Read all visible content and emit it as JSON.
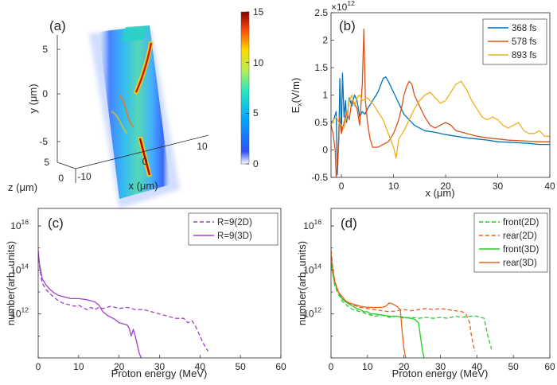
{
  "colors": {
    "blue": "#0072BD",
    "red": "#D95319",
    "gold": "#EDB120",
    "purple": "#A040C8",
    "green": "#22CC22",
    "orange": "#E8621E"
  },
  "panel_a": {
    "label": "(a)",
    "xlabel": "x (μm)",
    "ylabel": "y (μm)",
    "zlabel": "z (μm)",
    "xticks": [
      "-10",
      "0",
      "10"
    ],
    "yticks": [
      "5",
      "0",
      "-5"
    ],
    "zticks": [
      "5",
      "0"
    ],
    "colorbar_ticks": [
      "15",
      "10",
      "5",
      "0"
    ]
  },
  "chart_data": [
    {
      "panel": "(b)",
      "type": "line",
      "xlabel": "x (μm)",
      "ylabel": "E_x(V/m)",
      "ylabel_main": "E",
      "ylabel_sub": "x",
      "ylabel_tail": "(V/m)",
      "y_multiplier": "×10",
      "y_multiplier_exp": "12",
      "xlim": [
        -2,
        40
      ],
      "ylim": [
        -0.5,
        2.5
      ],
      "xticks": [
        "0",
        "10",
        "20",
        "30",
        "40"
      ],
      "yticks": [
        "-0.5",
        "0",
        "0.5",
        "1",
        "1.5",
        "2",
        "2.5"
      ],
      "legend_position": "top-right",
      "series": [
        {
          "name": "368 fs",
          "color": "#0072BD",
          "x": [
            -2,
            -1.5,
            -1,
            -0.8,
            -0.5,
            -0.3,
            0,
            0.2,
            0.5,
            0.8,
            1.0,
            1.5,
            2,
            2.5,
            3,
            3.5,
            4,
            4.5,
            5,
            6,
            7,
            8,
            8.5,
            9,
            10,
            11,
            12,
            13,
            14,
            15,
            16,
            18,
            20,
            22,
            24,
            26,
            28,
            30,
            32,
            34,
            36,
            38,
            40
          ],
          "y": [
            0.5,
            0.55,
            0.7,
            -0.45,
            0.2,
            1.3,
            0.3,
            1.4,
            0.6,
            0.9,
            0.5,
            0.95,
            0.8,
            1.0,
            0.9,
            0.6,
            0.7,
            0.65,
            0.75,
            0.9,
            1.05,
            1.3,
            1.33,
            1.25,
            1.05,
            0.85,
            0.65,
            0.55,
            0.45,
            0.4,
            0.35,
            0.32,
            0.28,
            0.25,
            0.22,
            0.2,
            0.18,
            0.15,
            0.14,
            0.13,
            0.12,
            0.1,
            0.1
          ]
        },
        {
          "name": "578 fs",
          "color": "#D95319",
          "x": [
            -2,
            -1.6,
            -1.2,
            -1,
            -0.7,
            -0.4,
            0,
            0.5,
            1,
            1.5,
            2,
            2.5,
            3,
            3.5,
            4,
            4.3,
            4.6,
            5,
            5.5,
            6,
            7,
            8,
            9,
            10,
            11,
            11.5,
            12,
            12.5,
            13,
            13.5,
            14,
            15,
            16,
            17,
            18,
            19,
            20,
            21,
            22,
            24,
            26,
            28,
            30,
            32,
            34,
            36,
            38,
            40
          ],
          "y": [
            0.45,
            0.3,
            0.0,
            -0.5,
            -0.2,
            0.6,
            0.3,
            0.5,
            0.7,
            0.55,
            0.9,
            0.85,
            0.75,
            0.45,
            1.2,
            2.2,
            0.9,
            0.5,
            0.2,
            0.05,
            0.05,
            0.1,
            0.15,
            0.3,
            0.55,
            0.75,
            1.0,
            1.15,
            1.25,
            1.2,
            1.0,
            0.8,
            0.6,
            0.45,
            0.4,
            0.45,
            0.5,
            0.45,
            0.35,
            0.3,
            0.25,
            0.22,
            0.2,
            0.18,
            0.17,
            0.16,
            0.15,
            0.15
          ]
        },
        {
          "name": "893 fs",
          "color": "#EDB120",
          "x": [
            -2,
            -1.5,
            -1,
            -0.5,
            0,
            0.5,
            1,
            1.5,
            2,
            2.5,
            3,
            3.5,
            4,
            5,
            6,
            7,
            8,
            9,
            10,
            10.5,
            11,
            12,
            13,
            14,
            15,
            16,
            17,
            18,
            19,
            20,
            21,
            22,
            23,
            24,
            25,
            26,
            27,
            28,
            29,
            30,
            31,
            32,
            33,
            34,
            35,
            36,
            37,
            38,
            39,
            40
          ],
          "y": [
            0.45,
            0.55,
            0.6,
            0.5,
            0.45,
            0.4,
            0.6,
            0.9,
            1.0,
            0.8,
            0.95,
            1.0,
            0.9,
            0.95,
            0.85,
            0.7,
            0.55,
            0.3,
            0.05,
            -0.15,
            0.2,
            0.35,
            0.55,
            0.75,
            0.9,
            1.0,
            1.05,
            0.95,
            0.85,
            0.9,
            1.05,
            1.2,
            1.25,
            1.1,
            0.9,
            0.75,
            0.6,
            0.55,
            0.6,
            0.55,
            0.45,
            0.4,
            0.45,
            0.5,
            0.35,
            0.3,
            0.3,
            0.35,
            0.25,
            0.25
          ]
        }
      ]
    },
    {
      "panel": "(c)",
      "type": "line",
      "xlabel": "Proton energy (MeV)",
      "ylabel": "number(arb. units)",
      "xlim": [
        0,
        60
      ],
      "ylog": true,
      "ylim_exp": [
        10,
        16.8
      ],
      "xticks": [
        "0",
        "10",
        "20",
        "30",
        "40",
        "50",
        "60"
      ],
      "yticks": [
        {
          "base": "10",
          "exp": "12",
          "e": 12
        },
        {
          "base": "10",
          "exp": "14",
          "e": 14
        },
        {
          "base": "10",
          "exp": "16",
          "e": 16
        }
      ],
      "legend_position": "top-right",
      "series": [
        {
          "name": "R=9(2D)",
          "color": "#A040C8",
          "dashed": true,
          "x": [
            0,
            0.3,
            0.7,
            1,
            2,
            3,
            4,
            5,
            6,
            7,
            8,
            9,
            10,
            11,
            12,
            13,
            14,
            15,
            16,
            18,
            20,
            22,
            24,
            26,
            28,
            30,
            32,
            34,
            36,
            37,
            38,
            39,
            40,
            41,
            42
          ],
          "y": [
            14.8,
            14.2,
            13.7,
            13.4,
            13.1,
            12.9,
            12.75,
            12.6,
            12.5,
            12.45,
            12.4,
            12.35,
            12.4,
            12.3,
            12.2,
            12.3,
            12.2,
            12.3,
            12.25,
            12.35,
            12.25,
            12.3,
            12.2,
            12.2,
            12.1,
            12.0,
            11.9,
            11.8,
            11.8,
            11.6,
            11.7,
            11.4,
            11.0,
            10.6,
            10.3
          ]
        },
        {
          "name": "R=9(3D)",
          "color": "#A040C8",
          "dashed": false,
          "x": [
            0,
            0.3,
            0.7,
            1,
            2,
            3,
            4,
            5,
            6,
            7,
            8,
            10,
            12,
            14,
            15,
            16,
            17,
            18,
            19,
            20,
            21,
            22,
            22.5,
            23,
            23.5,
            24,
            24.5,
            25,
            25.5
          ],
          "y": [
            14.9,
            14.3,
            13.9,
            13.6,
            13.3,
            13.1,
            12.95,
            12.85,
            12.8,
            12.75,
            12.7,
            12.7,
            12.65,
            12.55,
            12.4,
            12.1,
            11.95,
            11.85,
            11.75,
            11.6,
            11.55,
            11.5,
            11.35,
            11.0,
            11.3,
            11.0,
            10.6,
            10.2,
            10.0
          ]
        }
      ]
    },
    {
      "panel": "(d)",
      "type": "line",
      "xlabel": "Proton energy (MeV)",
      "ylabel": "number(arb. units)",
      "xlim": [
        0,
        60
      ],
      "ylog": true,
      "ylim_exp": [
        10,
        16.8
      ],
      "xticks": [
        "0",
        "10",
        "20",
        "30",
        "40",
        "50",
        "60"
      ],
      "yticks": [
        {
          "base": "10",
          "exp": "12",
          "e": 12
        },
        {
          "base": "10",
          "exp": "14",
          "e": 14
        },
        {
          "base": "10",
          "exp": "16",
          "e": 16
        }
      ],
      "legend_position": "top-right",
      "series": [
        {
          "name": "front(2D)",
          "color": "#22CC22",
          "dashed": true,
          "x": [
            0,
            0.5,
            1,
            2,
            3,
            4,
            5,
            6,
            8,
            10,
            12,
            14,
            16,
            18,
            20,
            22,
            24,
            26,
            28,
            30,
            32,
            34,
            36,
            38,
            40,
            42,
            43,
            44
          ],
          "y": [
            14.6,
            13.9,
            13.3,
            12.9,
            12.6,
            12.45,
            12.3,
            12.2,
            12.1,
            12.0,
            11.9,
            11.95,
            11.85,
            11.9,
            11.8,
            11.85,
            11.8,
            11.85,
            11.8,
            11.85,
            11.8,
            11.9,
            11.85,
            11.9,
            11.9,
            11.8,
            11.0,
            10.4
          ]
        },
        {
          "name": "rear(2D)",
          "color": "#E8621E",
          "dashed": true,
          "x": [
            0,
            0.5,
            1,
            2,
            3,
            4,
            5,
            6,
            8,
            10,
            12,
            14,
            16,
            18,
            20,
            22,
            24,
            26,
            28,
            30,
            32,
            34,
            36,
            37,
            38,
            38.5,
            39,
            39.5
          ],
          "y": [
            14.9,
            14.1,
            13.5,
            13.0,
            12.75,
            12.55,
            12.45,
            12.4,
            12.3,
            12.25,
            12.2,
            12.15,
            12.1,
            12.15,
            12.2,
            12.15,
            12.2,
            12.25,
            12.2,
            12.25,
            12.2,
            12.15,
            12.1,
            12.0,
            11.6,
            11.0,
            10.6,
            10.3
          ]
        },
        {
          "name": "front(3D)",
          "color": "#22CC22",
          "dashed": false,
          "x": [
            0,
            0.5,
            1,
            2,
            3,
            4,
            5,
            6,
            7,
            8,
            9,
            10,
            11,
            12,
            14,
            16,
            18,
            20,
            22,
            23,
            24,
            24.5,
            25,
            25.5
          ],
          "y": [
            14.3,
            13.8,
            13.4,
            13.0,
            12.7,
            12.55,
            12.45,
            12.35,
            12.25,
            12.2,
            12.1,
            12.1,
            12.0,
            12.0,
            11.95,
            11.9,
            11.9,
            11.85,
            11.8,
            11.75,
            11.6,
            11.0,
            10.4,
            10.0
          ]
        },
        {
          "name": "rear(3D)",
          "color": "#E8621E",
          "dashed": false,
          "x": [
            0,
            0.5,
            1,
            2,
            3,
            4,
            5,
            6,
            8,
            10,
            12,
            14,
            15,
            16,
            17,
            18,
            19,
            19.5,
            20,
            20.5
          ],
          "y": [
            14.7,
            14.0,
            13.5,
            13.0,
            12.8,
            12.6,
            12.5,
            12.45,
            12.35,
            12.3,
            12.3,
            12.3,
            12.35,
            12.5,
            12.45,
            12.35,
            12.2,
            11.2,
            10.4,
            10.0
          ]
        }
      ]
    }
  ]
}
